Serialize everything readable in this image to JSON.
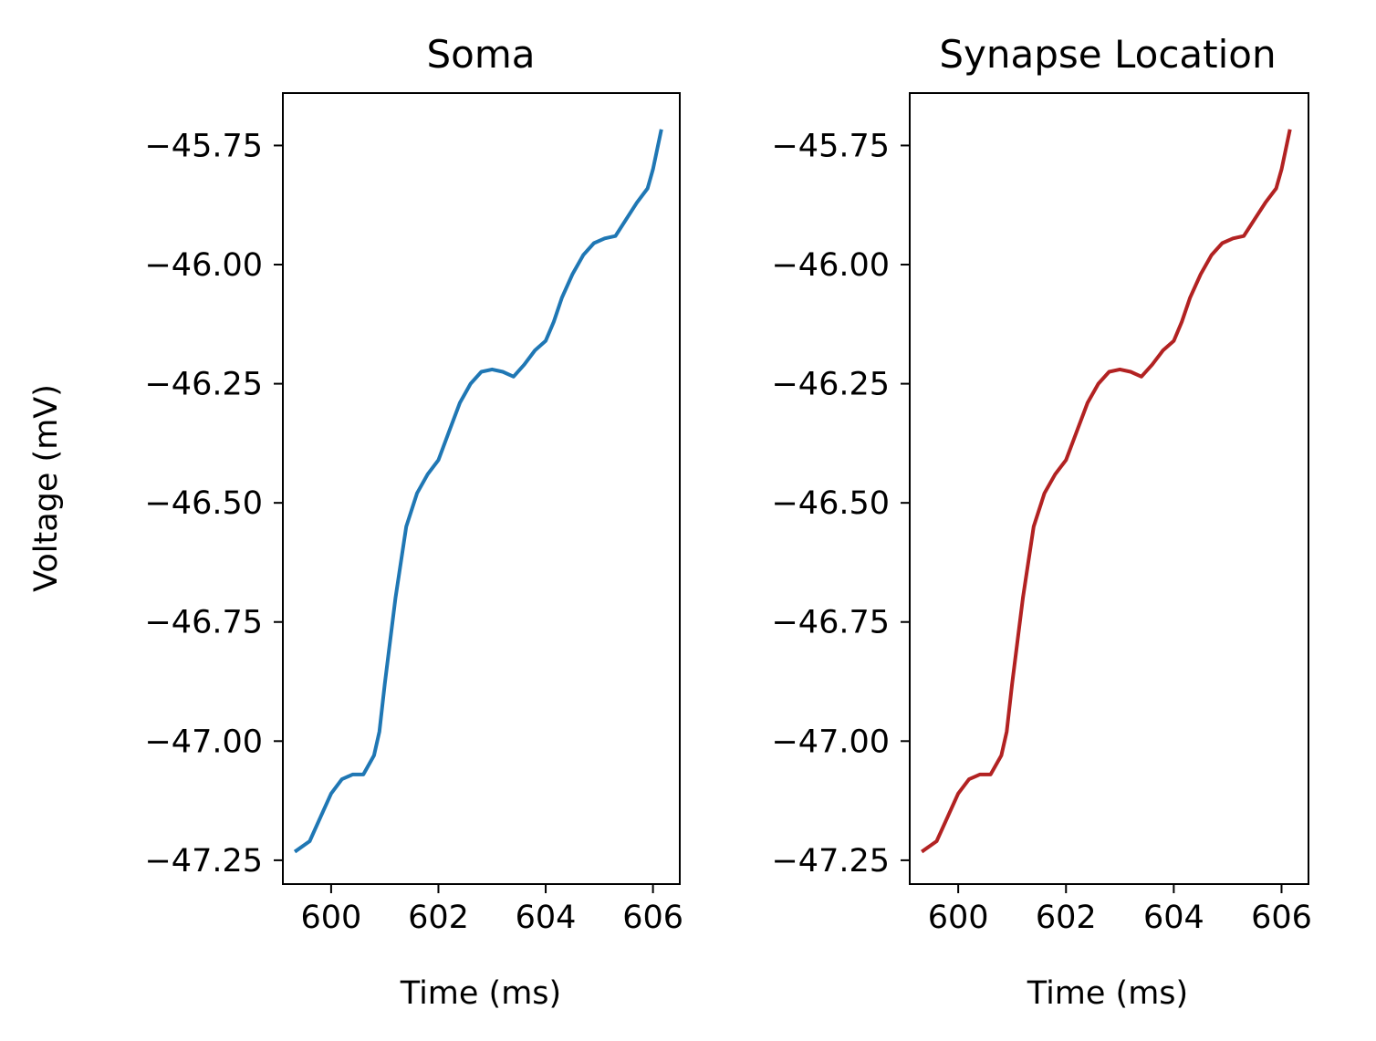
{
  "chart_data": [
    {
      "type": "line",
      "title": "Soma",
      "xlabel": "Time (ms)",
      "ylabel": "Voltage (mV)",
      "xlim": [
        599.1,
        606.5
      ],
      "ylim": [
        -47.3,
        -45.64
      ],
      "xticks": [
        600,
        602,
        604,
        606
      ],
      "xtick_labels": [
        "600",
        "602",
        "604",
        "606"
      ],
      "yticks": [
        -47.25,
        -47.0,
        -46.75,
        -46.5,
        -46.25,
        -46.0,
        -45.75
      ],
      "ytick_labels": [
        "−47.25",
        "−47.00",
        "−46.75",
        "−46.50",
        "−46.25",
        "−46.00",
        "−45.75"
      ],
      "grid": false,
      "series": [
        {
          "color": "#1f77b4",
          "x": [
            599.35,
            599.6,
            599.8,
            600.0,
            600.2,
            600.4,
            600.6,
            600.8,
            600.9,
            601.0,
            601.2,
            601.4,
            601.6,
            601.8,
            602.0,
            602.2,
            602.4,
            602.6,
            602.8,
            603.0,
            603.2,
            603.4,
            603.6,
            603.8,
            604.0,
            604.15,
            604.3,
            604.5,
            604.7,
            604.9,
            605.1,
            605.3,
            605.5,
            605.7,
            605.9,
            606.0,
            606.15
          ],
          "y": [
            -47.23,
            -47.21,
            -47.16,
            -47.11,
            -47.08,
            -47.07,
            -47.07,
            -47.03,
            -46.98,
            -46.88,
            -46.7,
            -46.55,
            -46.48,
            -46.44,
            -46.41,
            -46.35,
            -46.29,
            -46.25,
            -46.225,
            -46.22,
            -46.225,
            -46.235,
            -46.21,
            -46.18,
            -46.16,
            -46.12,
            -46.07,
            -46.02,
            -45.98,
            -45.955,
            -45.945,
            -45.94,
            -45.905,
            -45.87,
            -45.84,
            -45.8,
            -45.72
          ]
        }
      ]
    },
    {
      "type": "line",
      "title": "Synapse Location",
      "xlabel": "Time (ms)",
      "ylabel": "",
      "xlim": [
        599.1,
        606.5
      ],
      "ylim": [
        -47.3,
        -45.64
      ],
      "xticks": [
        600,
        602,
        604,
        606
      ],
      "xtick_labels": [
        "600",
        "602",
        "604",
        "606"
      ],
      "yticks": [
        -47.25,
        -47.0,
        -46.75,
        -46.5,
        -46.25,
        -46.0,
        -45.75
      ],
      "ytick_labels": [
        "−47.25",
        "−47.00",
        "−46.75",
        "−46.50",
        "−46.25",
        "−46.00",
        "−45.75"
      ],
      "grid": false,
      "series": [
        {
          "color": "#b22222",
          "x": [
            599.35,
            599.6,
            599.8,
            600.0,
            600.2,
            600.4,
            600.6,
            600.8,
            600.9,
            601.0,
            601.2,
            601.4,
            601.6,
            601.8,
            602.0,
            602.2,
            602.4,
            602.6,
            602.8,
            603.0,
            603.2,
            603.4,
            603.6,
            603.8,
            604.0,
            604.15,
            604.3,
            604.5,
            604.7,
            604.9,
            605.1,
            605.3,
            605.5,
            605.7,
            605.9,
            606.0,
            606.15
          ],
          "y": [
            -47.23,
            -47.21,
            -47.16,
            -47.11,
            -47.08,
            -47.07,
            -47.07,
            -47.03,
            -46.98,
            -46.88,
            -46.7,
            -46.55,
            -46.48,
            -46.44,
            -46.41,
            -46.35,
            -46.29,
            -46.25,
            -46.225,
            -46.22,
            -46.225,
            -46.235,
            -46.21,
            -46.18,
            -46.16,
            -46.12,
            -46.07,
            -46.02,
            -45.98,
            -45.955,
            -45.945,
            -45.94,
            -45.905,
            -45.87,
            -45.84,
            -45.8,
            -45.72
          ]
        }
      ]
    }
  ]
}
